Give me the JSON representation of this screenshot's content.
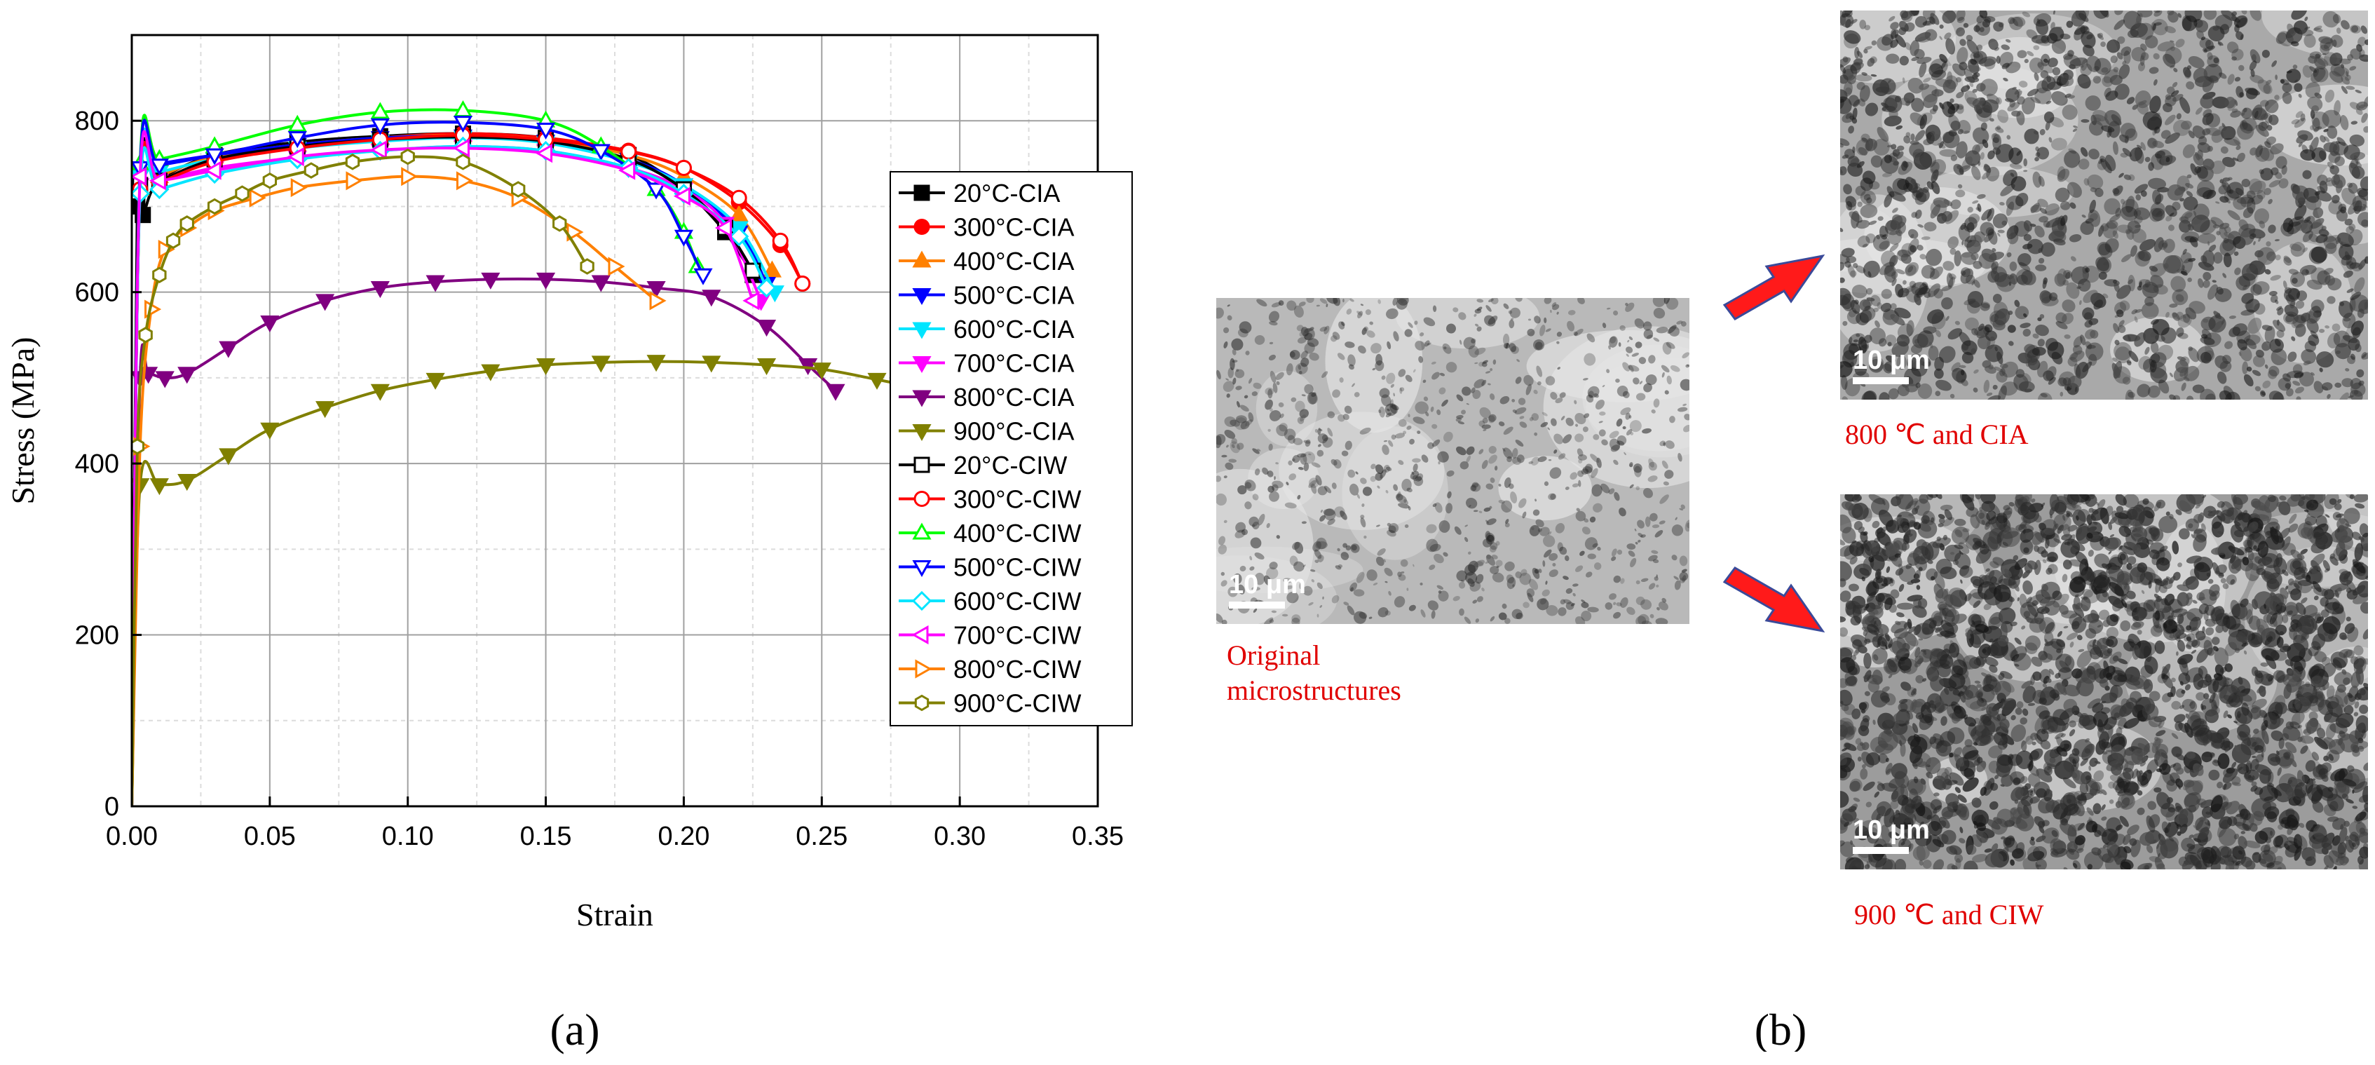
{
  "chart_data": {
    "type": "line",
    "xlabel": "Strain",
    "ylabel": "Stress (MPa)",
    "xlim": [
      0,
      0.35
    ],
    "ylim": [
      0,
      900
    ],
    "xticks": [
      "0.00",
      "0.05",
      "0.10",
      "0.15",
      "0.20",
      "0.25",
      "0.30",
      "0.35"
    ],
    "yticks": [
      "0",
      "200",
      "400",
      "600",
      "800"
    ],
    "grid": true,
    "legend_position": "right",
    "series": [
      {
        "name": "20°C-CIA",
        "color": "#000000",
        "marker": "square",
        "filled": true,
        "x": [
          0,
          0.002,
          0.004,
          0.01,
          0.03,
          0.06,
          0.09,
          0.12,
          0.15,
          0.18,
          0.2,
          0.215,
          0.225
        ],
        "y": [
          0,
          700,
          690,
          730,
          760,
          775,
          782,
          785,
          780,
          760,
          720,
          670,
          620
        ]
      },
      {
        "name": "300°C-CIA",
        "color": "#ff0000",
        "marker": "circle",
        "filled": true,
        "x": [
          0,
          0.003,
          0.01,
          0.03,
          0.06,
          0.09,
          0.12,
          0.15,
          0.18,
          0.2,
          0.22,
          0.235,
          0.243
        ],
        "y": [
          0,
          720,
          730,
          755,
          770,
          780,
          785,
          780,
          765,
          745,
          705,
          655,
          610
        ]
      },
      {
        "name": "400°C-CIA",
        "color": "#ff8000",
        "marker": "triangle-up",
        "filled": true,
        "x": [
          0,
          0.003,
          0.01,
          0.03,
          0.06,
          0.09,
          0.12,
          0.15,
          0.18,
          0.2,
          0.22,
          0.232
        ],
        "y": [
          0,
          720,
          735,
          758,
          772,
          780,
          783,
          778,
          760,
          735,
          690,
          625
        ]
      },
      {
        "name": "500°C-CIA",
        "color": "#0000ff",
        "marker": "triangle-down",
        "filled": true,
        "x": [
          0,
          0.003,
          0.01,
          0.03,
          0.06,
          0.09,
          0.12,
          0.15,
          0.18,
          0.2,
          0.22,
          0.23
        ],
        "y": [
          0,
          745,
          750,
          760,
          772,
          780,
          782,
          776,
          755,
          725,
          670,
          610
        ]
      },
      {
        "name": "600°C-CIA",
        "color": "#00e5ff",
        "marker": "triangle-down",
        "filled": true,
        "x": [
          0,
          0.003,
          0.01,
          0.03,
          0.06,
          0.09,
          0.12,
          0.15,
          0.18,
          0.2,
          0.22,
          0.233
        ],
        "y": [
          0,
          735,
          740,
          755,
          768,
          776,
          780,
          774,
          752,
          725,
          675,
          600
        ]
      },
      {
        "name": "700°C-CIA",
        "color": "#ff00ff",
        "marker": "triangle-down",
        "filled": true,
        "x": [
          0,
          0.003,
          0.01,
          0.03,
          0.06,
          0.09,
          0.12,
          0.15,
          0.18,
          0.2,
          0.215,
          0.228
        ],
        "y": [
          0,
          725,
          730,
          745,
          757,
          765,
          770,
          765,
          745,
          720,
          680,
          590
        ]
      },
      {
        "name": "800°C-CIA",
        "color": "#800080",
        "marker": "triangle-down",
        "filled": true,
        "x": [
          0,
          0.003,
          0.006,
          0.012,
          0.02,
          0.035,
          0.05,
          0.07,
          0.09,
          0.11,
          0.13,
          0.15,
          0.17,
          0.19,
          0.21,
          0.23,
          0.245,
          0.255
        ],
        "y": [
          0,
          500,
          505,
          500,
          505,
          535,
          565,
          590,
          605,
          612,
          615,
          615,
          612,
          605,
          595,
          560,
          515,
          485
        ]
      },
      {
        "name": "900°C-CIA",
        "color": "#808000",
        "marker": "triangle-down",
        "filled": true,
        "x": [
          0,
          0.003,
          0.01,
          0.02,
          0.035,
          0.05,
          0.07,
          0.09,
          0.11,
          0.13,
          0.15,
          0.17,
          0.19,
          0.21,
          0.23,
          0.25,
          0.27,
          0.29
        ],
        "y": [
          0,
          375,
          375,
          380,
          410,
          440,
          465,
          485,
          498,
          508,
          515,
          518,
          519,
          518,
          515,
          510,
          498,
          485
        ]
      },
      {
        "name": "20°C-CIW",
        "color": "#000000",
        "marker": "square",
        "filled": false,
        "x": [
          0,
          0.003,
          0.01,
          0.03,
          0.06,
          0.09,
          0.12,
          0.15,
          0.18,
          0.2,
          0.215,
          0.225
        ],
        "y": [
          0,
          725,
          730,
          755,
          770,
          778,
          781,
          776,
          755,
          720,
          675,
          625
        ]
      },
      {
        "name": "300°C-CIW",
        "color": "#ff0000",
        "marker": "circle",
        "filled": false,
        "x": [
          0,
          0.003,
          0.01,
          0.03,
          0.06,
          0.09,
          0.12,
          0.15,
          0.18,
          0.2,
          0.22,
          0.235,
          0.243
        ],
        "y": [
          0,
          720,
          728,
          752,
          768,
          778,
          783,
          778,
          764,
          745,
          710,
          660,
          610
        ]
      },
      {
        "name": "400°C-CIW",
        "color": "#00ff00",
        "marker": "triangle-up",
        "filled": false,
        "x": [
          0,
          0.003,
          0.01,
          0.03,
          0.06,
          0.09,
          0.12,
          0.15,
          0.17,
          0.19,
          0.2,
          0.205
        ],
        "y": [
          0,
          750,
          755,
          770,
          795,
          810,
          812,
          800,
          770,
          720,
          670,
          630
        ]
      },
      {
        "name": "500°C-CIW",
        "color": "#0000ff",
        "marker": "triangle-down",
        "filled": false,
        "x": [
          0,
          0.003,
          0.01,
          0.03,
          0.06,
          0.09,
          0.12,
          0.15,
          0.17,
          0.19,
          0.2,
          0.207
        ],
        "y": [
          0,
          745,
          748,
          760,
          780,
          795,
          798,
          790,
          765,
          720,
          665,
          620
        ]
      },
      {
        "name": "600°C-CIW",
        "color": "#00e5ff",
        "marker": "diamond",
        "filled": false,
        "x": [
          0,
          0.003,
          0.01,
          0.03,
          0.06,
          0.09,
          0.12,
          0.15,
          0.18,
          0.2,
          0.22,
          0.23
        ],
        "y": [
          0,
          715,
          720,
          738,
          755,
          765,
          770,
          765,
          745,
          715,
          665,
          605
        ]
      },
      {
        "name": "700°C-CIW",
        "color": "#ff00ff",
        "marker": "triangle-left",
        "filled": false,
        "x": [
          0,
          0.003,
          0.01,
          0.03,
          0.06,
          0.09,
          0.12,
          0.15,
          0.18,
          0.2,
          0.215,
          0.225
        ],
        "y": [
          0,
          735,
          730,
          742,
          758,
          766,
          768,
          762,
          742,
          712,
          675,
          590
        ]
      },
      {
        "name": "800°C-CIW",
        "color": "#ff8000",
        "marker": "triangle-right",
        "filled": false,
        "x": [
          0,
          0.003,
          0.007,
          0.012,
          0.02,
          0.03,
          0.045,
          0.06,
          0.08,
          0.1,
          0.12,
          0.14,
          0.16,
          0.175,
          0.19
        ],
        "y": [
          0,
          420,
          580,
          650,
          675,
          695,
          710,
          722,
          730,
          735,
          730,
          710,
          670,
          630,
          590
        ]
      },
      {
        "name": "900°C-CIW",
        "color": "#808000",
        "marker": "hexagon",
        "filled": false,
        "x": [
          0,
          0.002,
          0.005,
          0.01,
          0.015,
          0.02,
          0.03,
          0.04,
          0.05,
          0.065,
          0.08,
          0.1,
          0.12,
          0.14,
          0.155,
          0.165
        ],
        "y": [
          0,
          420,
          550,
          620,
          660,
          680,
          700,
          715,
          730,
          742,
          752,
          758,
          752,
          720,
          680,
          630
        ]
      }
    ]
  },
  "panels": {
    "a_label": "(a)",
    "b_label": "(b)"
  },
  "micrographs": {
    "original": {
      "scale": "10 μm",
      "caption": "Original microstructures"
    },
    "cia_800": {
      "scale": "10 μm",
      "caption": "800 ℃ and CIA"
    },
    "ciw_900": {
      "scale": "10 μm",
      "caption": "900 ℃ and CIW"
    }
  },
  "colors": {
    "caption": "#e00000",
    "arrow": "#ff1a1a",
    "arrow_outline": "#3a4a99"
  }
}
